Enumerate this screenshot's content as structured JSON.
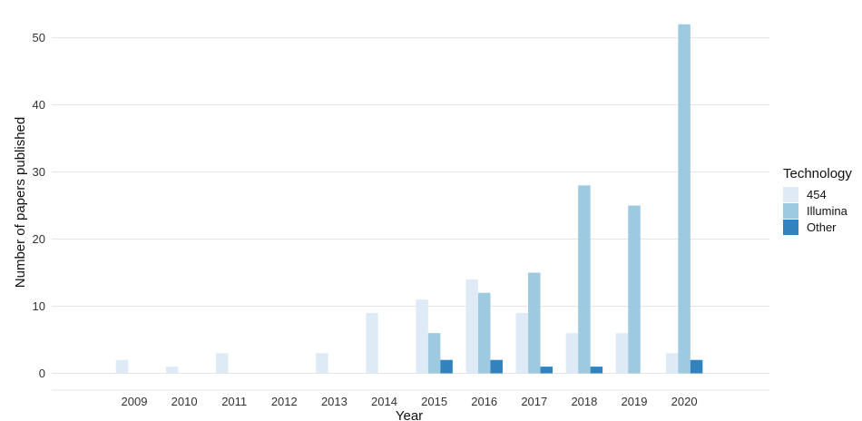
{
  "chart_data": {
    "type": "bar",
    "title": "",
    "xlabel": "Year",
    "ylabel": "Number of papers published",
    "categories": [
      "2009",
      "2010",
      "2011",
      "2012",
      "2013",
      "2014",
      "2015",
      "2016",
      "2017",
      "2018",
      "2019",
      "2020"
    ],
    "series": [
      {
        "name": "454",
        "color": "#deebf7",
        "values": [
          2,
          1,
          3,
          0,
          3,
          9,
          11,
          14,
          9,
          6,
          6,
          3
        ]
      },
      {
        "name": "Illumina",
        "color": "#9ecae1",
        "values": [
          0,
          0,
          0,
          0,
          0,
          0,
          6,
          12,
          15,
          28,
          25,
          52
        ]
      },
      {
        "name": "Other",
        "color": "#3182bd",
        "values": [
          0,
          0,
          0,
          0,
          0,
          0,
          2,
          2,
          1,
          1,
          0,
          2
        ]
      }
    ],
    "ylim": [
      -2.5,
      54
    ],
    "yticks": [
      0,
      10,
      20,
      30,
      40,
      50
    ],
    "grid": true,
    "legend": {
      "title": "Technology",
      "placement": "right"
    }
  }
}
